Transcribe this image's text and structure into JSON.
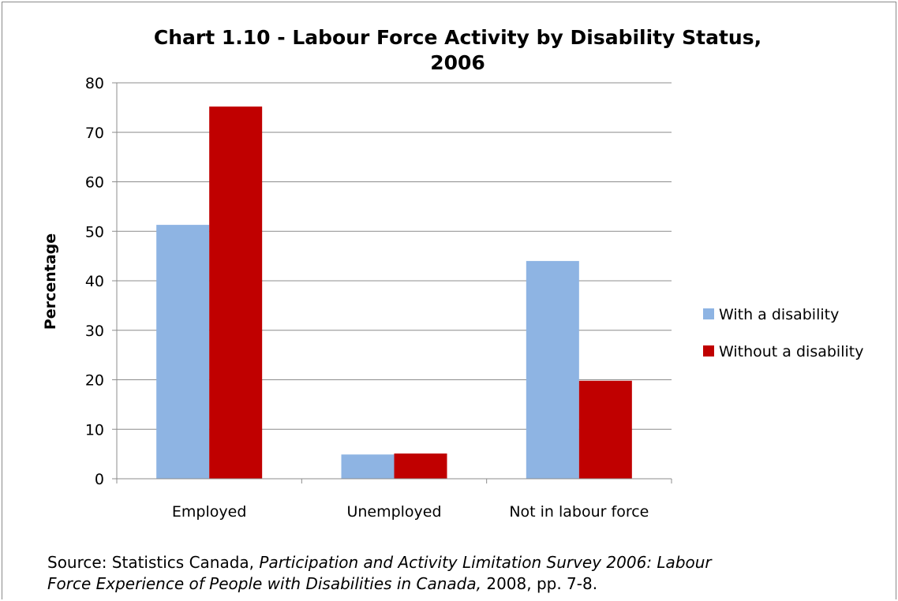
{
  "chart_data": {
    "type": "bar",
    "title_line1": "Chart 1.10 - Labour Force Activity by Disability Status,",
    "title_line2": "2006",
    "ylabel": "Percentage",
    "xlabel": "",
    "ylim": [
      0,
      80
    ],
    "yticks": [
      0,
      10,
      20,
      30,
      40,
      50,
      60,
      70,
      80
    ],
    "grid": true,
    "legend_position": "right",
    "categories": [
      "Employed",
      "Unemployed",
      "Not in labour force"
    ],
    "series": [
      {
        "name": "With a disability",
        "color": "#8EB4E3",
        "values": [
          51.3,
          4.9,
          44.0
        ]
      },
      {
        "name": "Without a disability",
        "color": "#C00000",
        "values": [
          75.2,
          5.1,
          19.8
        ]
      }
    ]
  },
  "source": {
    "prefix": "Source: Statistics Canada, ",
    "italic1": "Participation and Activity Limitation Survey 2006: Labour",
    "italic2": "Force Experience of People with Disabilities in Canada,",
    "suffix": " 2008, pp. 7-8."
  }
}
